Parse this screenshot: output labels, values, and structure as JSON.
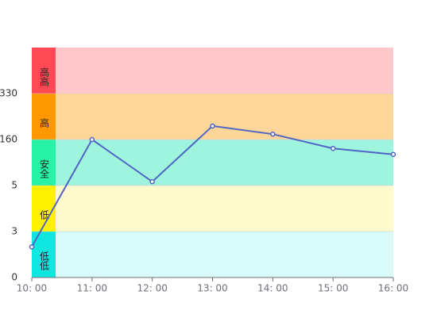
{
  "chart_data": {
    "type": "line",
    "categories": [
      "10: 00",
      "11: 00",
      "12: 00",
      "13: 00",
      "14: 00",
      "15: 00",
      "16: 00"
    ],
    "series": [
      {
        "color": "#5065c4",
        "values": [
          2,
          160,
          18,
          210,
          180,
          130,
          110
        ]
      }
    ],
    "yticks": [
      0,
      3,
      5,
      160,
      330
    ],
    "bands": [
      {
        "label": "低低",
        "color": "#0ee6e0",
        "fill": "#d9fbf9"
      },
      {
        "label": "低",
        "color": "#fff200",
        "fill": "#fffbcc"
      },
      {
        "label": "安全",
        "color": "#27f2a6",
        "fill": "#9ff4de"
      },
      {
        "label": "高",
        "color": "#ff9700",
        "fill": "#ffd699"
      },
      {
        "label": "高高",
        "color": "#ff4a56",
        "fill": "#ffc7ca"
      }
    ]
  }
}
